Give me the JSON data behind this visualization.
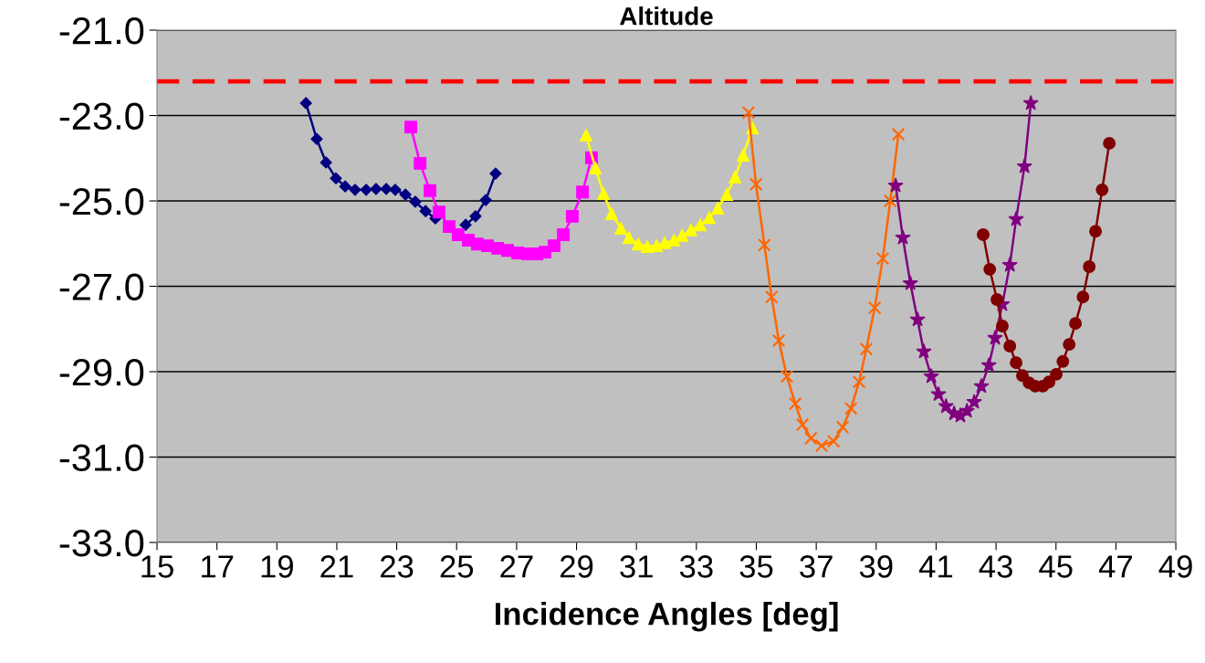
{
  "chart_data": {
    "type": "line",
    "title": "Altitude",
    "xlabel": "Incidence Angles [deg]",
    "xlim": [
      15,
      49
    ],
    "xticks": [
      15,
      17,
      19,
      21,
      23,
      25,
      27,
      29,
      31,
      33,
      35,
      37,
      39,
      41,
      43,
      45,
      47,
      49
    ],
    "ylim": [
      -33,
      -21
    ],
    "yticks": [
      {
        "value": -33,
        "label": "-33.0"
      },
      {
        "value": -31,
        "label": "-31.0"
      },
      {
        "value": -29,
        "label": "-29.0"
      },
      {
        "value": -27,
        "label": "-27.0"
      },
      {
        "value": -25,
        "label": "-25.0"
      },
      {
        "value": -23,
        "label": "-23.0"
      },
      {
        "value": -21,
        "label": "-21.0"
      }
    ],
    "grid": "y",
    "legend": false,
    "ref_lines": [
      {
        "axis": "y",
        "value": -22.2,
        "color": "#ff0000",
        "line_style": "dashed"
      }
    ],
    "series": [
      {
        "color": "#000080",
        "marker": "diamond",
        "x": [
          19.97,
          20.33,
          20.64,
          20.97,
          21.28,
          21.61,
          21.98,
          22.31,
          22.65,
          22.95,
          23.29,
          23.62,
          23.96,
          24.29,
          24.63,
          24.99,
          25.3,
          25.63,
          25.97,
          26.3
        ],
        "values": [
          -22.71,
          -23.55,
          -24.1,
          -24.47,
          -24.66,
          -24.74,
          -24.74,
          -24.72,
          -24.72,
          -24.74,
          -24.85,
          -25.02,
          -25.24,
          -25.41,
          null,
          null,
          -25.56,
          -25.36,
          -24.98,
          -24.36
        ]
      },
      {
        "color": "#ff00ff",
        "marker": "square",
        "x": [
          23.47,
          23.78,
          24.11,
          24.41,
          24.75,
          25.05,
          25.39,
          25.69,
          26.03,
          26.37,
          26.7,
          27.04,
          27.37,
          27.68,
          27.95,
          28.25,
          28.56,
          28.86,
          29.2,
          29.5
        ],
        "values": [
          -23.27,
          -24.12,
          -24.76,
          -25.26,
          -25.6,
          -25.79,
          -25.92,
          -26.01,
          -26.05,
          -26.11,
          -26.16,
          -26.22,
          -26.24,
          -26.24,
          -26.2,
          -26.05,
          -25.79,
          -25.36,
          -24.79,
          -23.99
        ]
      },
      {
        "color": "#ffff00",
        "marker": "triangle",
        "x": [
          29.32,
          29.63,
          29.9,
          30.17,
          30.48,
          30.75,
          31.06,
          31.36,
          31.67,
          31.94,
          32.25,
          32.52,
          32.82,
          33.13,
          33.43,
          33.71,
          34.01,
          34.29,
          34.56,
          34.87
        ],
        "values": [
          -23.46,
          -24.23,
          -24.83,
          -25.3,
          -25.64,
          -25.86,
          -26.01,
          -26.07,
          -26.05,
          -25.98,
          -25.92,
          -25.81,
          -25.68,
          -25.56,
          -25.39,
          -25.17,
          -24.85,
          -24.44,
          -23.93,
          -23.29
        ]
      },
      {
        "color": "#ff6600",
        "marker": "cross",
        "x": [
          34.74,
          34.99,
          35.27,
          35.51,
          35.75,
          36.02,
          36.3,
          36.54,
          36.82,
          37.18,
          37.58,
          37.88,
          38.16,
          38.43,
          38.67,
          38.95,
          39.22,
          39.47,
          39.74
        ],
        "values": [
          -22.93,
          -24.61,
          -26.03,
          -27.25,
          -28.27,
          -29.11,
          -29.75,
          -30.24,
          -30.56,
          -30.73,
          -30.63,
          -30.3,
          -29.86,
          -29.24,
          -28.47,
          -27.5,
          -26.35,
          -25.0,
          -23.44
        ]
      },
      {
        "color": "#800080",
        "marker": "star",
        "x": [
          39.65,
          39.89,
          40.14,
          40.38,
          40.59,
          40.84,
          41.08,
          41.33,
          41.6,
          41.81,
          42.03,
          42.27,
          42.51,
          42.76,
          42.97,
          43.21,
          43.46,
          43.67,
          43.95,
          44.16
        ],
        "values": [
          -24.64,
          -25.86,
          -26.93,
          -27.78,
          -28.53,
          -29.11,
          -29.53,
          -29.81,
          -29.98,
          -30.03,
          -29.92,
          -29.71,
          -29.34,
          -28.85,
          -28.21,
          -27.42,
          -26.5,
          -25.43,
          -24.19,
          -22.71
        ]
      },
      {
        "color": "#800000",
        "marker": "circle",
        "x": [
          42.57,
          42.79,
          43.03,
          43.21,
          43.46,
          43.67,
          43.88,
          44.1,
          44.31,
          44.56,
          44.77,
          45.01,
          45.23,
          45.44,
          45.65,
          45.9,
          46.11,
          46.32,
          46.54,
          46.78
        ],
        "values": [
          -25.79,
          -26.6,
          -27.31,
          -27.93,
          -28.4,
          -28.79,
          -29.09,
          -29.26,
          -29.34,
          -29.34,
          -29.24,
          -29.06,
          -28.76,
          -28.36,
          -27.87,
          -27.25,
          -26.54,
          -25.71,
          -24.74,
          -23.65
        ]
      }
    ]
  }
}
